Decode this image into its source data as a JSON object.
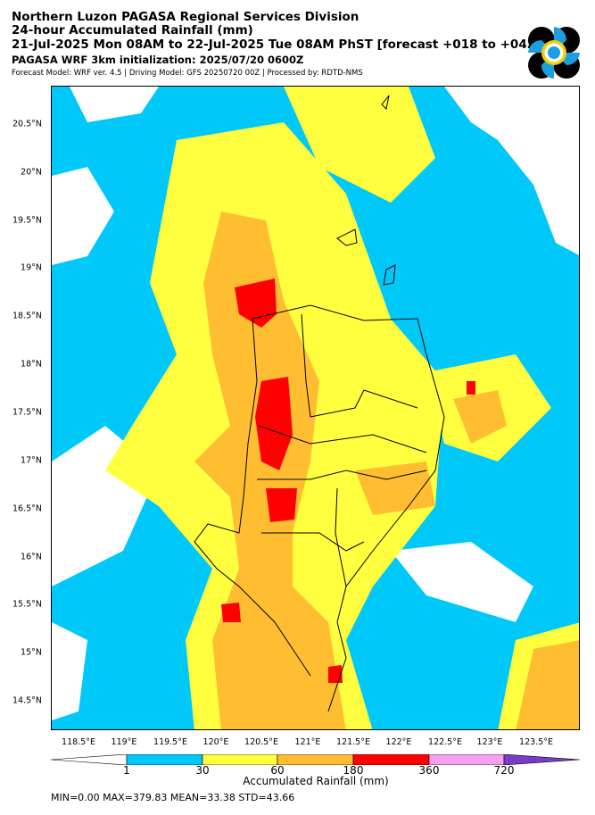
{
  "header": {
    "line1": "Northern Luzon PAGASA Regional Services Division",
    "line2": "24-hour Accumulated Rainfall (mm)",
    "line3": "21-Jul-2025 Mon 08AM to 22-Jul-2025 Tue 08AM PhST [forecast +018 to +042]",
    "line4": "PAGASA WRF 3km initialization: 2025/07/20 0600Z",
    "line5": "Forecast Model: WRF ver. 4.5 | Driving Model: GFS 20250720 00Z | Processed by: RDTD-NMS"
  },
  "logo": {
    "name": "pagasa-logo"
  },
  "map": {
    "lat_labels": [
      "20.5°N",
      "20°N",
      "19.5°N",
      "19°N",
      "18.5°N",
      "18°N",
      "17.5°N",
      "17°N",
      "16.5°N",
      "16°N",
      "15.5°N",
      "15°N",
      "14.5°N"
    ],
    "lon_labels": [
      "118.5°E",
      "119°E",
      "119.5°E",
      "120°E",
      "120.5°E",
      "121°E",
      "121.5°E",
      "122°E",
      "122.5°E",
      "123°E",
      "123.5°E"
    ],
    "colors": {
      "background": "#00c8f8",
      "dry": "#ffffff",
      "light": "#ffff40",
      "moderate": "#ffbe32",
      "heavy": "#ff0000",
      "boundary": "#000000"
    }
  },
  "colorbar": {
    "ticks": [
      "1",
      "30",
      "60",
      "180",
      "360",
      "720"
    ],
    "colors": [
      "#ffffff",
      "#00c8f8",
      "#ffff40",
      "#ffbe32",
      "#ff0000",
      "#f5a0f0",
      "#7a3cc8"
    ],
    "title": "Accumulated Rainfall (mm)"
  },
  "stats": "MIN=0.00   MAX=379.83   MEAN=33.38   STD=43.66"
}
